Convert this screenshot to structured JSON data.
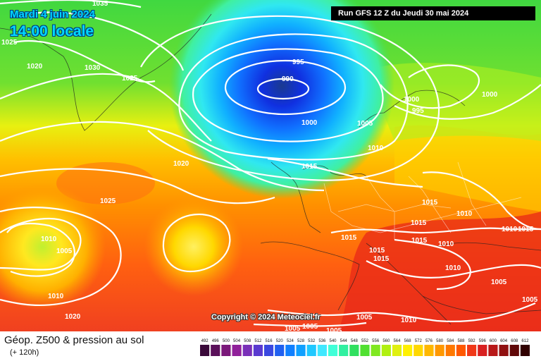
{
  "header": {
    "date": "Mardi 4 juin 2024",
    "local_time": "14:00 locale",
    "run": "Run GFS 12 Z du Jeudi 30 mai 2024"
  },
  "copyright": "Copyright © 2024 Meteociel.fr",
  "legend": {
    "title": "Géop. Z500 & pression au sol",
    "subtitle": "(+ 120h)",
    "scale_labels": [
      "492",
      "496",
      "500",
      "504",
      "508",
      "512",
      "516",
      "520",
      "524",
      "528",
      "532",
      "536",
      "540",
      "544",
      "548",
      "552",
      "556",
      "560",
      "564",
      "568",
      "572",
      "576",
      "580",
      "584",
      "588",
      "592",
      "596",
      "600",
      "604",
      "608",
      "612"
    ],
    "scale_colors": [
      "#3a0a3a",
      "#5a105a",
      "#7a187a",
      "#90209a",
      "#7a30b8",
      "#5a3ad0",
      "#3a48e0",
      "#2060f0",
      "#1080ff",
      "#10a0ff",
      "#20c8ff",
      "#40e8ff",
      "#40ffd8",
      "#30f0a0",
      "#30e060",
      "#50e030",
      "#80e820",
      "#b0f010",
      "#e0f010",
      "#fff000",
      "#ffd800",
      "#ffb800",
      "#ff9800",
      "#ff7800",
      "#ff5800",
      "#f03818",
      "#d82020",
      "#b81818",
      "#901010",
      "#600808",
      "#300000"
    ]
  },
  "isobar_labels": [
    "1035",
    "1025",
    "1020",
    "1030",
    "1025",
    "995",
    "990",
    "1000",
    "1005",
    "1000",
    "995",
    "1000",
    "1020",
    "1010",
    "1015",
    "1025",
    "1015",
    "1010",
    "1005",
    "1015",
    "1015",
    "1015",
    "1010",
    "1015",
    "1015",
    "1010",
    "1010",
    "1015",
    "1010",
    "1005",
    "1005",
    "1020",
    "1010",
    "1005",
    "1005",
    "1005",
    "1005",
    "1010"
  ],
  "colors": {
    "low_center": "#1020a0",
    "isobar": "#ffffff",
    "banner_bg": "#000000"
  }
}
